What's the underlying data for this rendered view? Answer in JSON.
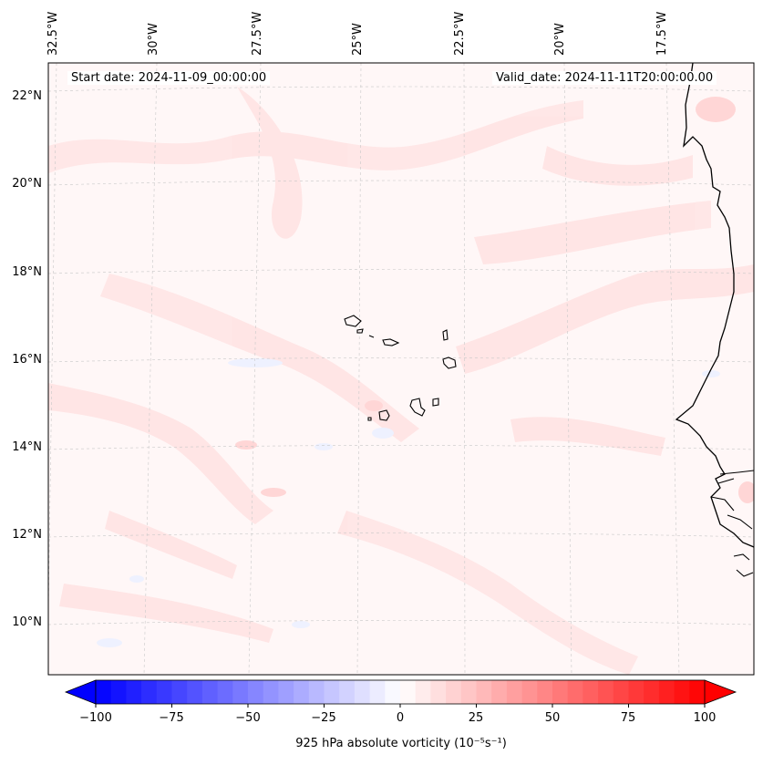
{
  "header": {
    "start_date": "Start date: 2024-11-09_00:00:00",
    "valid_date": "Valid_date: 2024-11-11T20:00:00.00"
  },
  "longitude_labels": [
    "32.5°W",
    "30°W",
    "27.5°W",
    "25°W",
    "22.5°W",
    "20°W",
    "17.5°W"
  ],
  "latitude_labels": [
    "22°N",
    "20°N",
    "18°N",
    "16°N",
    "14°N",
    "12°N",
    "10°N"
  ],
  "colorbar": {
    "label": "925 hPa absolute vorticity (10⁻⁵s⁻¹)",
    "ticks": [
      "−100",
      "−75",
      "−50",
      "−25",
      "0",
      "25",
      "50",
      "75",
      "100"
    ],
    "min": -100,
    "max": 100,
    "levels": 40,
    "negative_color": "#0000ff",
    "positive_color": "#ff0000"
  },
  "map": {
    "background_color": "#fff7f7",
    "weak_positive_color": "#ffe3e3",
    "weak_negative_color": "#f0f3ff",
    "coastline_color": "#000000"
  }
}
